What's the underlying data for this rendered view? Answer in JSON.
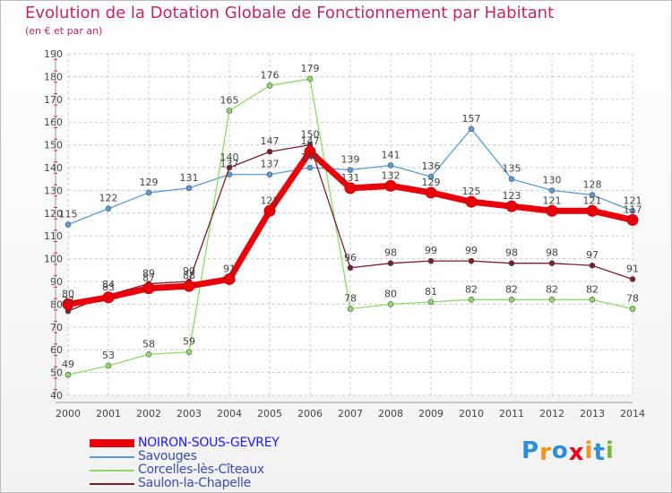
{
  "chart_data": {
    "type": "line",
    "title": "Evolution de la Dotation Globale de Fonctionnement par Habitant",
    "subtitle": "(en € et par an)",
    "xlabel": "",
    "ylabel": "",
    "ylim": [
      40,
      190
    ],
    "ytick_step": 10,
    "categories": [
      "2000",
      "2001",
      "2002",
      "2003",
      "2004",
      "2005",
      "2006",
      "2007",
      "2008",
      "2009",
      "2010",
      "2011",
      "2012",
      "2013",
      "2014"
    ],
    "series": [
      {
        "name": "NOIRON-SOUS-GEVREY",
        "color": "#e8000b",
        "emphasis": true,
        "values": [
          80,
          83,
          87,
          88,
          91,
          121,
          147,
          131,
          132,
          129,
          125,
          123,
          121,
          121,
          117
        ]
      },
      {
        "name": "Savouges",
        "color": "#5b9bd5",
        "values": [
          115,
          122,
          129,
          131,
          137,
          137,
          140,
          139,
          141,
          136,
          157,
          135,
          130,
          128,
          121
        ]
      },
      {
        "name": "Corcelles-lès-Cîteaux",
        "color": "#8fd86a",
        "values": [
          49,
          53,
          58,
          59,
          165,
          176,
          179,
          78,
          80,
          81,
          82,
          82,
          82,
          82,
          78
        ]
      },
      {
        "name": "Saulon-la-Chapelle",
        "color": "#7b1f2a",
        "values": [
          77,
          84,
          89,
          90,
          140,
          147,
          150,
          96,
          98,
          99,
          99,
          98,
          98,
          97,
          91
        ]
      }
    ],
    "grid": true,
    "legend_position": "bottom-left"
  },
  "logo": {
    "letters": [
      "P",
      "r",
      "o",
      "x",
      "i",
      "t",
      "i"
    ],
    "colors": [
      "#2e8fd6",
      "#f4931e",
      "#2e8fd6",
      "#e8001c",
      "#f4931e",
      "#2e8fd6",
      "#79b83c"
    ]
  }
}
